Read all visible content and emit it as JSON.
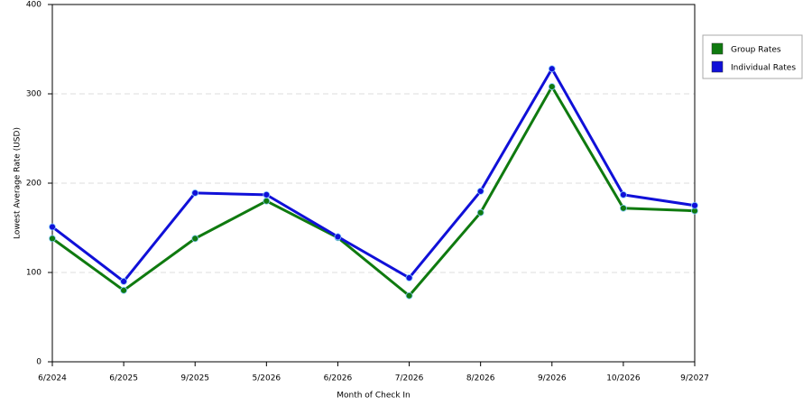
{
  "chart_data": {
    "type": "line",
    "xlabel": "Month of Check In",
    "ylabel": "Lowest Average Rate (USD)",
    "categories": [
      "6/2024",
      "6/2025",
      "9/2025",
      "5/2026",
      "6/2026",
      "7/2026",
      "8/2026",
      "9/2026",
      "10/2026",
      "9/2027"
    ],
    "series": [
      {
        "name": "Group Rates",
        "color": "#0f7a0f",
        "values": [
          138,
          80,
          138,
          180,
          139,
          74,
          167,
          308,
          172,
          169
        ]
      },
      {
        "name": "Individual Rates",
        "color": "#1010d8",
        "values": [
          151,
          90,
          189,
          187,
          140,
          94,
          191,
          328,
          187,
          175
        ]
      }
    ],
    "ylim": [
      0,
      400
    ],
    "yticks": [
      0,
      100,
      200,
      300,
      400
    ],
    "grid": true,
    "legend": "right"
  }
}
